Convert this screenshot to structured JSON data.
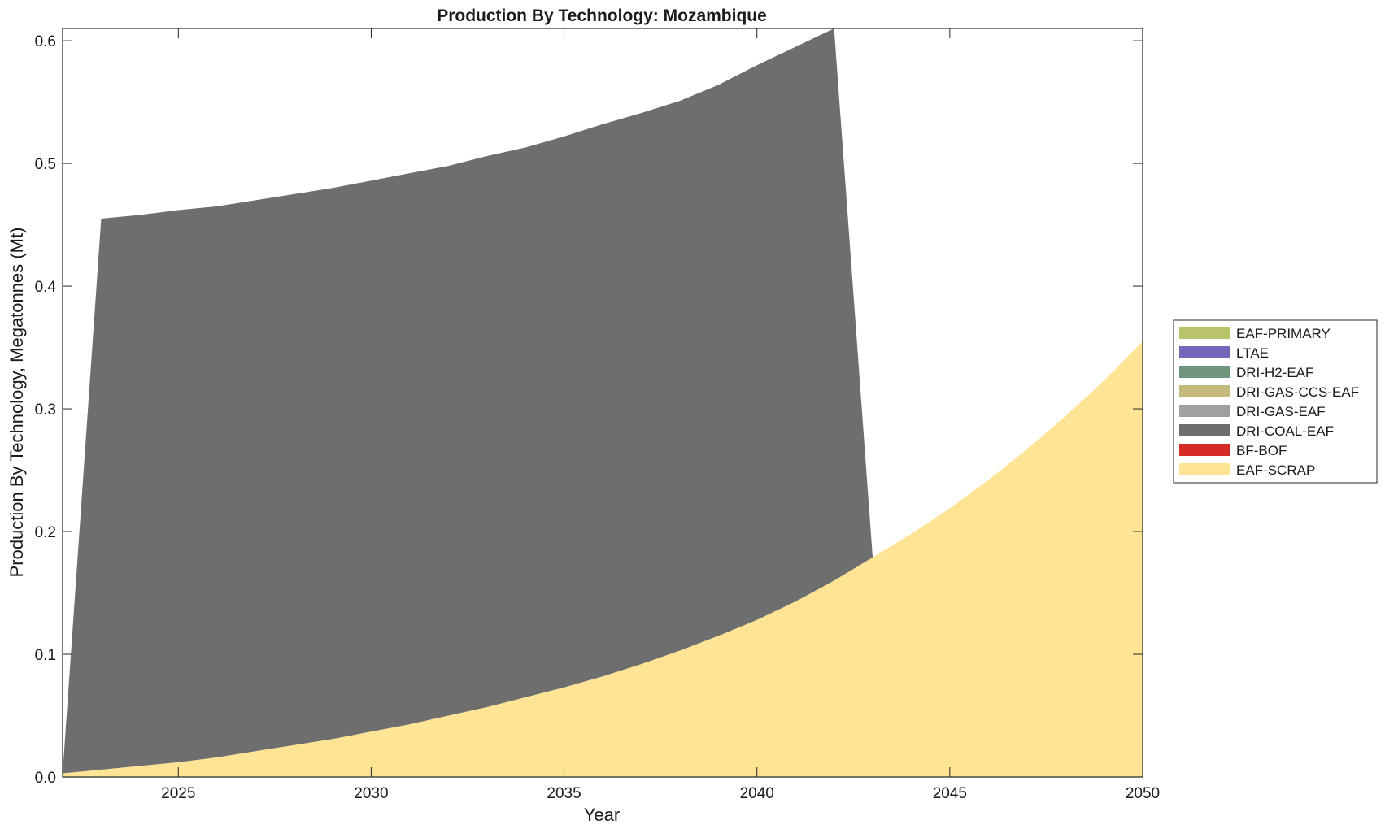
{
  "chart_data": {
    "type": "area",
    "stacked": true,
    "title": "Production By Technology: Mozambique",
    "xlabel": "Year",
    "ylabel": "Production By Technology, Megatonnes (Mt)",
    "xlim": [
      2022,
      2050
    ],
    "ylim": [
      0,
      0.61
    ],
    "xticks": [
      2025,
      2030,
      2035,
      2040,
      2045,
      2050
    ],
    "yticks": [
      0.0,
      0.1,
      0.2,
      0.3,
      0.4,
      0.5,
      0.6
    ],
    "ytick_labels": [
      "0.0",
      "0.1",
      "0.2",
      "0.3",
      "0.4",
      "0.5",
      "0.6"
    ],
    "grid": false,
    "legend_position": "right",
    "x": [
      2022,
      2023,
      2024,
      2025,
      2026,
      2027,
      2028,
      2029,
      2030,
      2031,
      2032,
      2033,
      2034,
      2035,
      2036,
      2037,
      2038,
      2039,
      2040,
      2041,
      2042,
      2043,
      2044,
      2045,
      2046,
      2047,
      2048,
      2049,
      2050
    ],
    "series": [
      {
        "name": "EAF-SCRAP",
        "color": "#FFE495",
        "values": [
          0.003,
          0.006,
          0.009,
          0.012,
          0.016,
          0.021,
          0.026,
          0.031,
          0.037,
          0.043,
          0.05,
          0.057,
          0.065,
          0.073,
          0.082,
          0.092,
          0.103,
          0.115,
          0.128,
          0.143,
          0.16,
          0.179,
          0.198,
          0.219,
          0.242,
          0.267,
          0.294,
          0.323,
          0.355
        ]
      },
      {
        "name": "BF-BOF",
        "color": "#D62A24",
        "values": [
          0,
          0,
          0,
          0,
          0,
          0,
          0,
          0,
          0,
          0,
          0,
          0,
          0,
          0,
          0,
          0,
          0,
          0,
          0,
          0,
          0,
          0,
          0,
          0,
          0,
          0,
          0,
          0,
          0
        ]
      },
      {
        "name": "DRI-COAL-EAF",
        "color": "#6E6E6E",
        "values": [
          0,
          0.449,
          0.449,
          0.45,
          0.449,
          0.449,
          0.449,
          0.449,
          0.449,
          0.449,
          0.448,
          0.449,
          0.448,
          0.449,
          0.45,
          0.449,
          0.448,
          0.449,
          0.452,
          0.452,
          0.45,
          0,
          0,
          0,
          0,
          0,
          0,
          0,
          0
        ]
      },
      {
        "name": "DRI-GAS-EAF",
        "color": "#A0A0A0",
        "values": [
          0,
          0,
          0,
          0,
          0,
          0,
          0,
          0,
          0,
          0,
          0,
          0,
          0,
          0,
          0,
          0,
          0,
          0,
          0,
          0,
          0,
          0,
          0,
          0,
          0,
          0,
          0,
          0,
          0
        ]
      },
      {
        "name": "DRI-GAS-CCS-EAF",
        "color": "#C4BA7C",
        "values": [
          0,
          0,
          0,
          0,
          0,
          0,
          0,
          0,
          0,
          0,
          0,
          0,
          0,
          0,
          0,
          0,
          0,
          0,
          0,
          0,
          0,
          0,
          0,
          0,
          0,
          0,
          0,
          0,
          0
        ]
      },
      {
        "name": "DRI-H2-EAF",
        "color": "#6F967C",
        "values": [
          0,
          0,
          0,
          0,
          0,
          0,
          0,
          0,
          0,
          0,
          0,
          0,
          0,
          0,
          0,
          0,
          0,
          0,
          0,
          0,
          0,
          0,
          0,
          0,
          0,
          0,
          0,
          0,
          0
        ]
      },
      {
        "name": "LTAE",
        "color": "#7367BA",
        "values": [
          0,
          0,
          0,
          0,
          0,
          0,
          0,
          0,
          0,
          0,
          0,
          0,
          0,
          0,
          0,
          0,
          0,
          0,
          0,
          0,
          0,
          0,
          0,
          0,
          0,
          0,
          0,
          0,
          0
        ]
      },
      {
        "name": "EAF-PRIMARY",
        "color": "#B9C36A",
        "values": [
          0,
          0,
          0,
          0,
          0,
          0,
          0,
          0,
          0,
          0,
          0,
          0,
          0,
          0,
          0,
          0,
          0,
          0,
          0,
          0,
          0,
          0,
          0,
          0,
          0,
          0,
          0,
          0,
          0
        ]
      }
    ]
  }
}
